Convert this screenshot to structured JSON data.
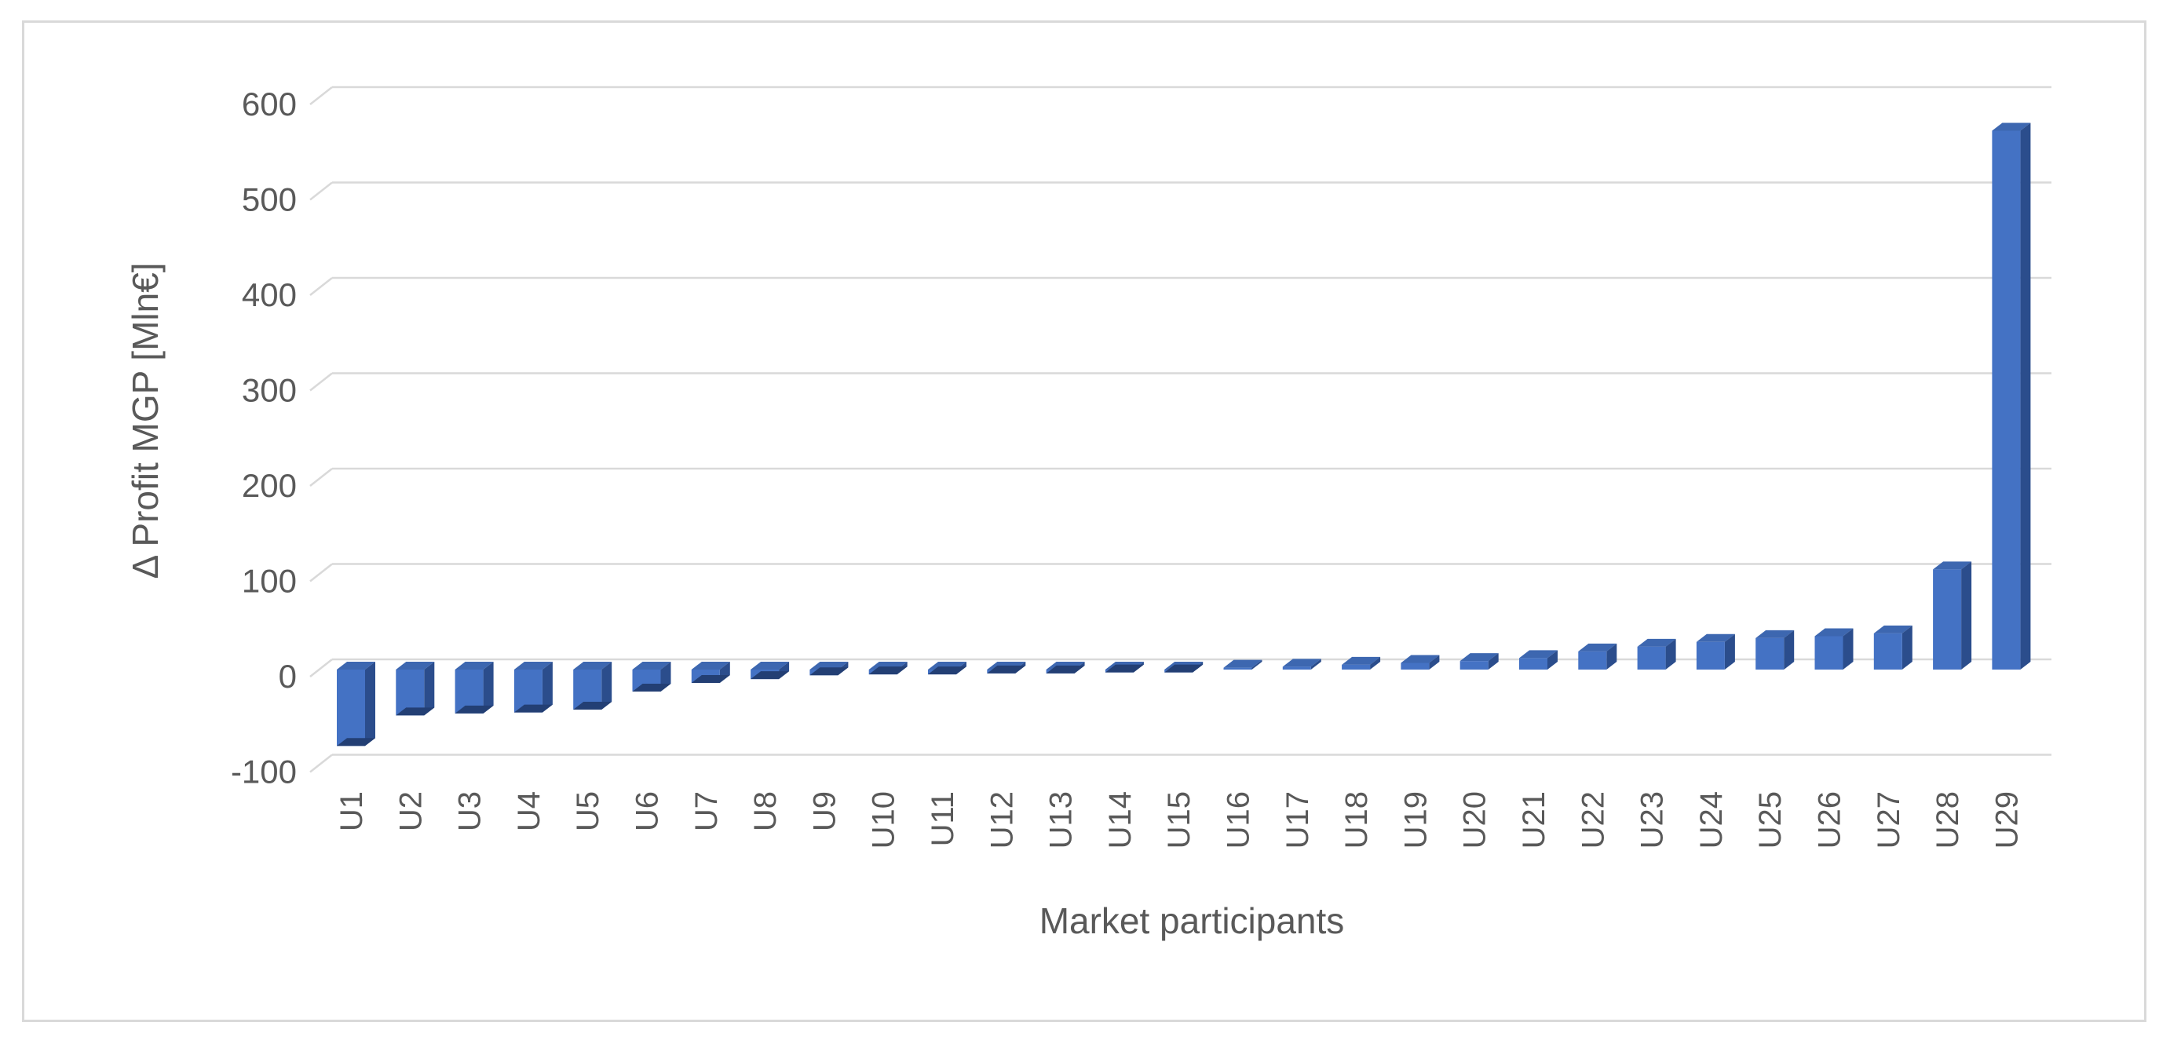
{
  "axis": {
    "x_title": "Market participants",
    "y_title": "Δ Profit MGP [Mln€]"
  },
  "colors": {
    "bar_front": "#4472C4",
    "bar_side": "#2B4D8C",
    "bar_top": "#3D67B0",
    "bar_bottom": "#233F74",
    "gridline": "#D9D9D9",
    "frame_border": "#D9D9D9",
    "text": "#595959",
    "background": "#FFFFFF"
  },
  "chart_data": {
    "type": "bar",
    "style": "3d-column",
    "title": "",
    "xlabel": "Market participants",
    "ylabel": "Δ Profit MGP [Mln€]",
    "ylim": [
      -100,
      600
    ],
    "y_ticks": [
      600,
      500,
      400,
      300,
      200,
      100,
      0,
      -100
    ],
    "grid": "horizontal",
    "legend": "none",
    "x_label_rotation": -90,
    "categories": [
      "U1",
      "U2",
      "U3",
      "U4",
      "U5",
      "U6",
      "U7",
      "U8",
      "U9",
      "U10",
      "U11",
      "U12",
      "U13",
      "U14",
      "U15",
      "U16",
      "U17",
      "U18",
      "U19",
      "U20",
      "U21",
      "U22",
      "U23",
      "U24",
      "U25",
      "U26",
      "U27",
      "U28",
      "U29"
    ],
    "values": [
      -80,
      -48,
      -46,
      -45,
      -42,
      -23,
      -14,
      -10,
      -6,
      -5,
      -5,
      -4,
      -4,
      -3,
      -3,
      2,
      3,
      5,
      7,
      9,
      12,
      19,
      24,
      29,
      33,
      35,
      38,
      105,
      565
    ]
  }
}
